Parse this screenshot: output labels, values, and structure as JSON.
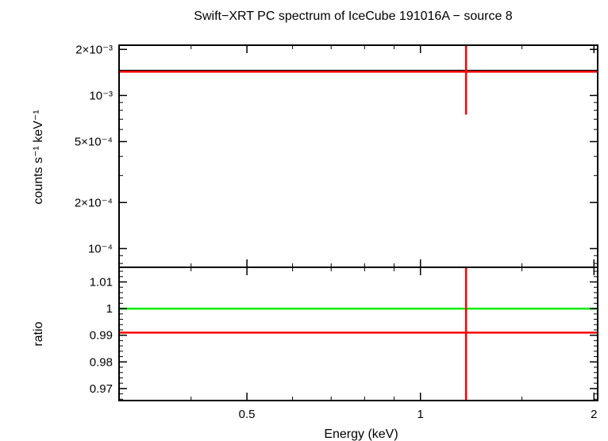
{
  "chart_data": {
    "type": "scatter",
    "title": "Swift−XRT PC spectrum of IceCube 191016A − source 8",
    "xlabel": "Energy (keV)",
    "xscale": "log",
    "xlim": [
      0.3,
      2.03
    ],
    "x_ticks": [
      {
        "value": 0.5,
        "label": "0.5"
      },
      {
        "value": 1,
        "label": "1"
      },
      {
        "value": 2,
        "label": "2"
      }
    ],
    "panels": [
      {
        "name": "spectrum",
        "ylabel": "counts s⁻¹ keV⁻¹",
        "yscale": "log",
        "ylim": [
          7.55e-05,
          0.00213
        ],
        "y_ticks": [
          {
            "value": 0.002,
            "label": "2×10⁻³"
          },
          {
            "value": 0.001,
            "label": "10⁻³"
          },
          {
            "value": 0.0005,
            "label": "5×10⁻⁴"
          },
          {
            "value": 0.0002,
            "label": "2×10⁻⁴"
          },
          {
            "value": 0.0001,
            "label": "10⁻⁴"
          }
        ],
        "series": [
          {
            "role": "model",
            "color": "#000000",
            "kind": "hline",
            "y": 0.00145
          },
          {
            "role": "data",
            "color": "#ff0000",
            "kind": "hline",
            "y": 0.00143
          },
          {
            "role": "data",
            "color": "#ff0000",
            "kind": "errorbar",
            "x": 1.2,
            "y_low": 0.00075,
            "y_high": 0.00213
          }
        ]
      },
      {
        "name": "ratio",
        "ylabel": "ratio",
        "yscale": "linear",
        "ylim": [
          0.9655,
          1.0155
        ],
        "y_ticks": [
          {
            "value": 1.01,
            "label": "1.01"
          },
          {
            "value": 1,
            "label": "1"
          },
          {
            "value": 0.99,
            "label": "0.99"
          },
          {
            "value": 0.98,
            "label": "0.98"
          },
          {
            "value": 0.97,
            "label": "0.97"
          }
        ],
        "series": [
          {
            "role": "reference",
            "color": "#00ee00",
            "kind": "hline",
            "y": 1
          },
          {
            "role": "data",
            "color": "#ff0000",
            "kind": "hline",
            "y": 0.991
          },
          {
            "role": "data",
            "color": "#ff0000",
            "kind": "errorbar",
            "x": 1.2,
            "y_low": 0.9655,
            "y_high": 1.0155
          }
        ]
      }
    ]
  }
}
